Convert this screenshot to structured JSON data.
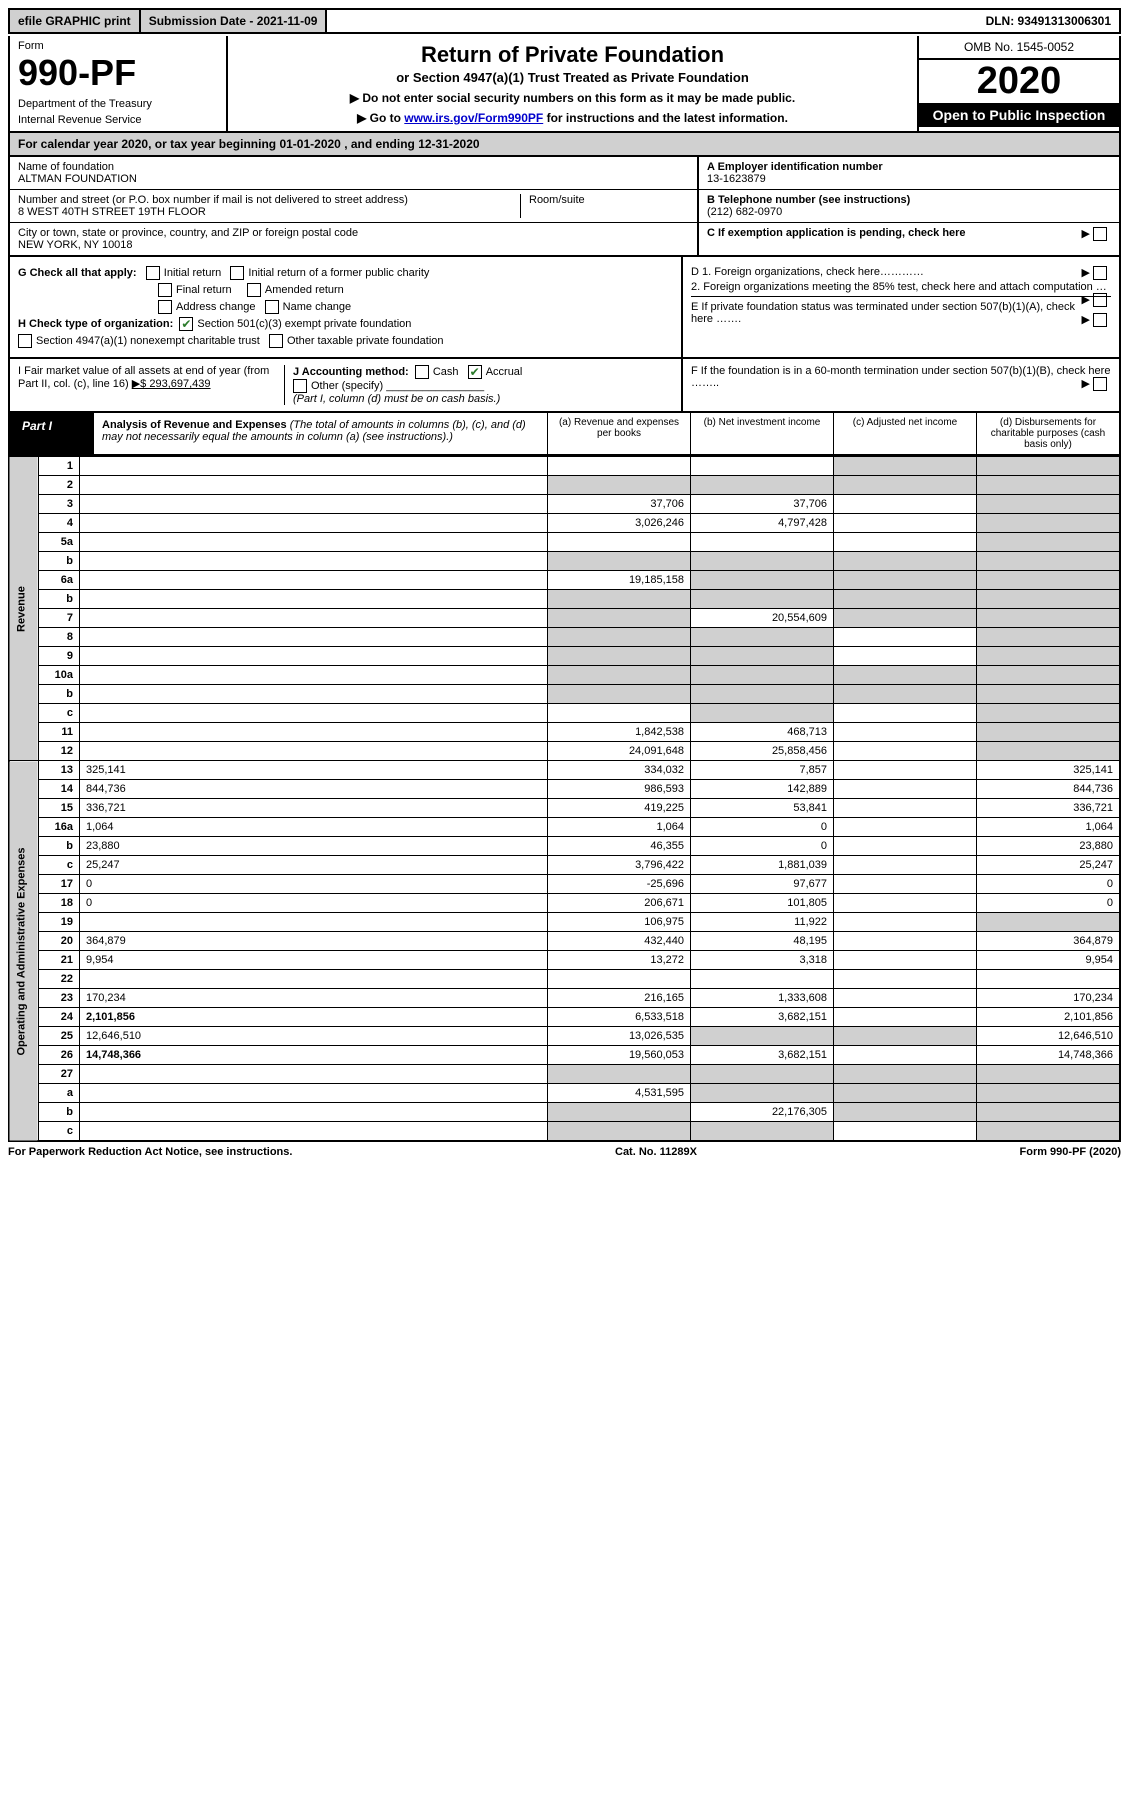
{
  "top": {
    "efile": "efile GRAPHIC print",
    "submission": "Submission Date - 2021-11-09",
    "dln": "DLN: 93491313006301"
  },
  "header": {
    "form_label": "Form",
    "form_number": "990-PF",
    "dept1": "Department of the Treasury",
    "dept2": "Internal Revenue Service",
    "title": "Return of Private Foundation",
    "subtitle": "or Section 4947(a)(1) Trust Treated as Private Foundation",
    "instr1": "▶ Do not enter social security numbers on this form as it may be made public.",
    "instr2_pre": "▶ Go to ",
    "instr2_link": "www.irs.gov/Form990PF",
    "instr2_post": " for instructions and the latest information.",
    "omb": "OMB No. 1545-0052",
    "year": "2020",
    "open": "Open to Public Inspection"
  },
  "cal": {
    "text_pre": "For calendar year 2020, or tax year beginning ",
    "begin": "01-01-2020",
    "mid": " , and ending ",
    "end": "12-31-2020"
  },
  "info": {
    "name_label": "Name of foundation",
    "name": "ALTMAN FOUNDATION",
    "addr_label": "Number and street (or P.O. box number if mail is not delivered to street address)",
    "addr": "8 WEST 40TH STREET 19TH FLOOR",
    "room_label": "Room/suite",
    "city_label": "City or town, state or province, country, and ZIP or foreign postal code",
    "city": "NEW YORK, NY  10018",
    "A_label": "A Employer identification number",
    "A_val": "13-1623879",
    "B_label": "B Telephone number (see instructions)",
    "B_val": "(212) 682-0970",
    "C_label": "C If exemption application is pending, check here"
  },
  "checks": {
    "G_label": "G Check all that apply:",
    "initial": "Initial return",
    "final": "Final return",
    "address": "Address change",
    "initial_former": "Initial return of a former public charity",
    "amended": "Amended return",
    "name_change": "Name change",
    "H_label": "H Check type of organization:",
    "H_501c3": "Section 501(c)(3) exempt private foundation",
    "H_4947": "Section 4947(a)(1) nonexempt charitable trust",
    "H_other": "Other taxable private foundation",
    "D1": "D 1. Foreign organizations, check here…………",
    "D2": "2. Foreign organizations meeting the 85% test, check here and attach computation …",
    "E": "E  If private foundation status was terminated under section 507(b)(1)(A), check here …….",
    "I_label": "I Fair market value of all assets at end of year (from Part II, col. (c), line 16)",
    "I_val": "▶$  293,697,439",
    "J_label": "J Accounting method:",
    "J_cash": "Cash",
    "J_accrual": "Accrual",
    "J_other": "Other (specify)",
    "J_note": "(Part I, column (d) must be on cash basis.)",
    "F": "F  If the foundation is in a 60-month termination under section 507(b)(1)(B), check here …….."
  },
  "part1": {
    "label": "Part I",
    "title": "Analysis of Revenue and Expenses",
    "note": "(The total of amounts in columns (b), (c), and (d) may not necessarily equal the amounts in column (a) (see instructions).)",
    "col_a": "(a)  Revenue and expenses per books",
    "col_b": "(b)  Net investment income",
    "col_c": "(c)  Adjusted net income",
    "col_d": "(d)  Disbursements for charitable purposes (cash basis only)"
  },
  "side": {
    "revenue": "Revenue",
    "opadmin": "Operating and Administrative Expenses"
  },
  "lines": [
    {
      "n": "1",
      "d": "",
      "a": "",
      "b": "",
      "c": "",
      "d_shade": true,
      "c_shade": true
    },
    {
      "n": "2",
      "d": "",
      "a": "",
      "b": "",
      "c": "",
      "a_shade": true,
      "b_shade": true,
      "c_shade": true,
      "d_shade": true,
      "desc_html": true
    },
    {
      "n": "3",
      "d": "",
      "a": "37,706",
      "b": "37,706",
      "c": "",
      "d_shade": true
    },
    {
      "n": "4",
      "d": "",
      "a": "3,026,246",
      "b": "4,797,428",
      "c": "",
      "d_shade": true
    },
    {
      "n": "5a",
      "d": "",
      "a": "",
      "b": "",
      "c": "",
      "d_shade": true
    },
    {
      "n": "b",
      "d": "",
      "a": "",
      "b": "",
      "c": "",
      "a_shade": true,
      "b_shade": true,
      "c_shade": true,
      "d_shade": true
    },
    {
      "n": "6a",
      "d": "",
      "a": "19,185,158",
      "b": "",
      "c": "",
      "b_shade": true,
      "c_shade": true,
      "d_shade": true
    },
    {
      "n": "b",
      "d": "",
      "a": "",
      "b": "",
      "c": "",
      "a_shade": true,
      "b_shade": true,
      "c_shade": true,
      "d_shade": true
    },
    {
      "n": "7",
      "d": "",
      "a": "",
      "b": "20,554,609",
      "c": "",
      "a_shade": true,
      "c_shade": true,
      "d_shade": true
    },
    {
      "n": "8",
      "d": "",
      "a": "",
      "b": "",
      "c": "",
      "a_shade": true,
      "b_shade": true,
      "d_shade": true
    },
    {
      "n": "9",
      "d": "",
      "a": "",
      "b": "",
      "c": "",
      "a_shade": true,
      "b_shade": true,
      "d_shade": true
    },
    {
      "n": "10a",
      "d": "",
      "a": "",
      "b": "",
      "c": "",
      "a_shade": true,
      "b_shade": true,
      "c_shade": true,
      "d_shade": true
    },
    {
      "n": "b",
      "d": "",
      "a": "",
      "b": "",
      "c": "",
      "a_shade": true,
      "b_shade": true,
      "c_shade": true,
      "d_shade": true
    },
    {
      "n": "c",
      "d": "",
      "a": "",
      "b": "",
      "c": "",
      "b_shade": true,
      "d_shade": true
    },
    {
      "n": "11",
      "d": "",
      "a": "1,842,538",
      "b": "468,713",
      "c": "",
      "d_shade": true
    },
    {
      "n": "12",
      "d": "",
      "a": "24,091,648",
      "b": "25,858,456",
      "c": "",
      "d_shade": true,
      "bold": true
    },
    {
      "n": "13",
      "d": "325,141",
      "a": "334,032",
      "b": "7,857",
      "c": ""
    },
    {
      "n": "14",
      "d": "844,736",
      "a": "986,593",
      "b": "142,889",
      "c": ""
    },
    {
      "n": "15",
      "d": "336,721",
      "a": "419,225",
      "b": "53,841",
      "c": ""
    },
    {
      "n": "16a",
      "d": "1,064",
      "a": "1,064",
      "b": "0",
      "c": ""
    },
    {
      "n": "b",
      "d": "23,880",
      "a": "46,355",
      "b": "0",
      "c": ""
    },
    {
      "n": "c",
      "d": "25,247",
      "a": "3,796,422",
      "b": "1,881,039",
      "c": ""
    },
    {
      "n": "17",
      "d": "0",
      "a": "-25,696",
      "b": "97,677",
      "c": ""
    },
    {
      "n": "18",
      "d": "0",
      "a": "206,671",
      "b": "101,805",
      "c": ""
    },
    {
      "n": "19",
      "d": "",
      "a": "106,975",
      "b": "11,922",
      "c": "",
      "d_shade": true
    },
    {
      "n": "20",
      "d": "364,879",
      "a": "432,440",
      "b": "48,195",
      "c": ""
    },
    {
      "n": "21",
      "d": "9,954",
      "a": "13,272",
      "b": "3,318",
      "c": ""
    },
    {
      "n": "22",
      "d": "",
      "a": "",
      "b": "",
      "c": ""
    },
    {
      "n": "23",
      "d": "170,234",
      "a": "216,165",
      "b": "1,333,608",
      "c": ""
    },
    {
      "n": "24",
      "d": "2,101,856",
      "a": "6,533,518",
      "b": "3,682,151",
      "c": "",
      "bold": true
    },
    {
      "n": "25",
      "d": "12,646,510",
      "a": "13,026,535",
      "b": "",
      "c": "",
      "b_shade": true,
      "c_shade": true
    },
    {
      "n": "26",
      "d": "14,748,366",
      "a": "19,560,053",
      "b": "3,682,151",
      "c": "",
      "bold": true
    },
    {
      "n": "27",
      "d": "",
      "a": "",
      "b": "",
      "c": "",
      "a_shade": true,
      "b_shade": true,
      "c_shade": true,
      "d_shade": true
    },
    {
      "n": "a",
      "d": "",
      "a": "4,531,595",
      "b": "",
      "c": "",
      "b_shade": true,
      "c_shade": true,
      "d_shade": true,
      "bold": true
    },
    {
      "n": "b",
      "d": "",
      "a": "",
      "b": "22,176,305",
      "c": "",
      "a_shade": true,
      "c_shade": true,
      "d_shade": true,
      "bold": true
    },
    {
      "n": "c",
      "d": "",
      "a": "",
      "b": "",
      "c": "",
      "a_shade": true,
      "b_shade": true,
      "d_shade": true,
      "bold": true
    }
  ],
  "footer": {
    "left": "For Paperwork Reduction Act Notice, see instructions.",
    "mid": "Cat. No. 11289X",
    "right": "Form 990-PF (2020)"
  }
}
